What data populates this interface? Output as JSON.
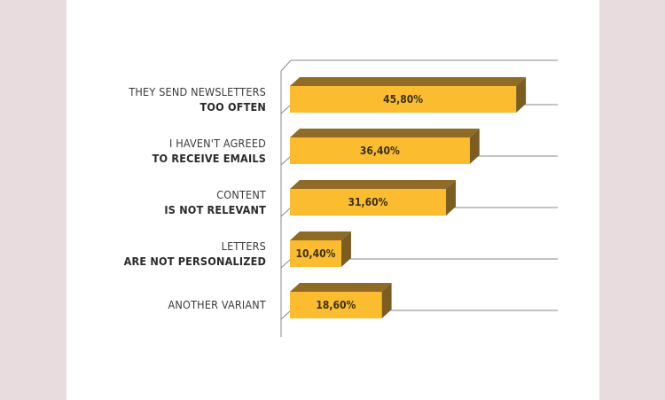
{
  "chart_data": {
    "type": "bar",
    "orientation": "horizontal",
    "style": "3d",
    "categories": [
      {
        "line1": "THEY SEND NEWSLETTERS",
        "line2": "TOO OFTEN"
      },
      {
        "line1": "I HAVEN'T AGREED",
        "line2": "TO RECEIVE EMAILS"
      },
      {
        "line1": "CONTENT",
        "line2": "IS NOT RELEVANT"
      },
      {
        "line1": "LETTERS",
        "line2": "ARE NOT PERSONALIZED"
      },
      {
        "line1": "ANOTHER VARIANT",
        "line2": ""
      }
    ],
    "values": [
      45.8,
      36.4,
      31.6,
      10.4,
      18.6
    ],
    "value_labels": [
      "45,80%",
      "36,40%",
      "31,60%",
      "10,40%",
      "18,60%"
    ],
    "xlim": [
      0,
      50
    ],
    "grid": true,
    "colors": {
      "bar_front": "#fbbd2f",
      "bar_side": "#7b5d22",
      "bar_top": "#8f6b25",
      "gridline": "#8a8a8a",
      "background": "#e9dcde",
      "panel": "#ffffff"
    }
  }
}
